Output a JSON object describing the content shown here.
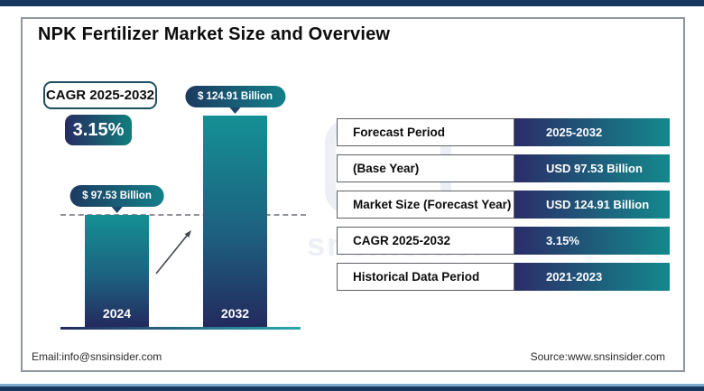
{
  "page": {
    "title": "NPK Fertilizer Market Size and Overview",
    "footer": {
      "email": "Email:info@snsinsider.com",
      "source": "Source:www.snsinsider.com"
    }
  },
  "cagr": {
    "label": "CAGR 2025-2032",
    "value": "3.15%"
  },
  "chart_data": {
    "type": "bar",
    "title": "NPK Fertilizer Market Size and Overview",
    "categories": [
      "2024",
      "2032"
    ],
    "values": [
      97.53,
      124.91
    ],
    "value_labels": [
      "$ 97.53 Billion",
      "$ 124.91 Billion"
    ],
    "unit": "USD Billion",
    "xlabel": "",
    "ylabel": "",
    "legend": "none",
    "grid": "off",
    "baseline_not_zero": true,
    "annotations": [
      "CAGR 2025-2032: 3.15%",
      "dashed reference line at 2024 bar top",
      "upward growth arrow between bars"
    ]
  },
  "table": {
    "rows": [
      {
        "label": "Forecast Period",
        "value": "2025-2032"
      },
      {
        "label": "(Base Year)",
        "value": "USD 97.53 Billion"
      },
      {
        "label": "Market Size (Forecast Year)",
        "value": "USD 124.91 Billion"
      },
      {
        "label": "CAGR 2025-2032",
        "value": "3.15%"
      },
      {
        "label": "Historical Data Period",
        "value": "2021-2023"
      }
    ]
  },
  "watermark": {
    "text": "snsinsider"
  },
  "colors": {
    "navy": "#17365d",
    "indigo": "#2a2d68",
    "teal": "#13898c",
    "bar_top_teal": "#149094",
    "bar_bottom_navy": "#232a5e",
    "light_blue_accent": "#7fa9cf",
    "frame_border": "#8f959c"
  }
}
